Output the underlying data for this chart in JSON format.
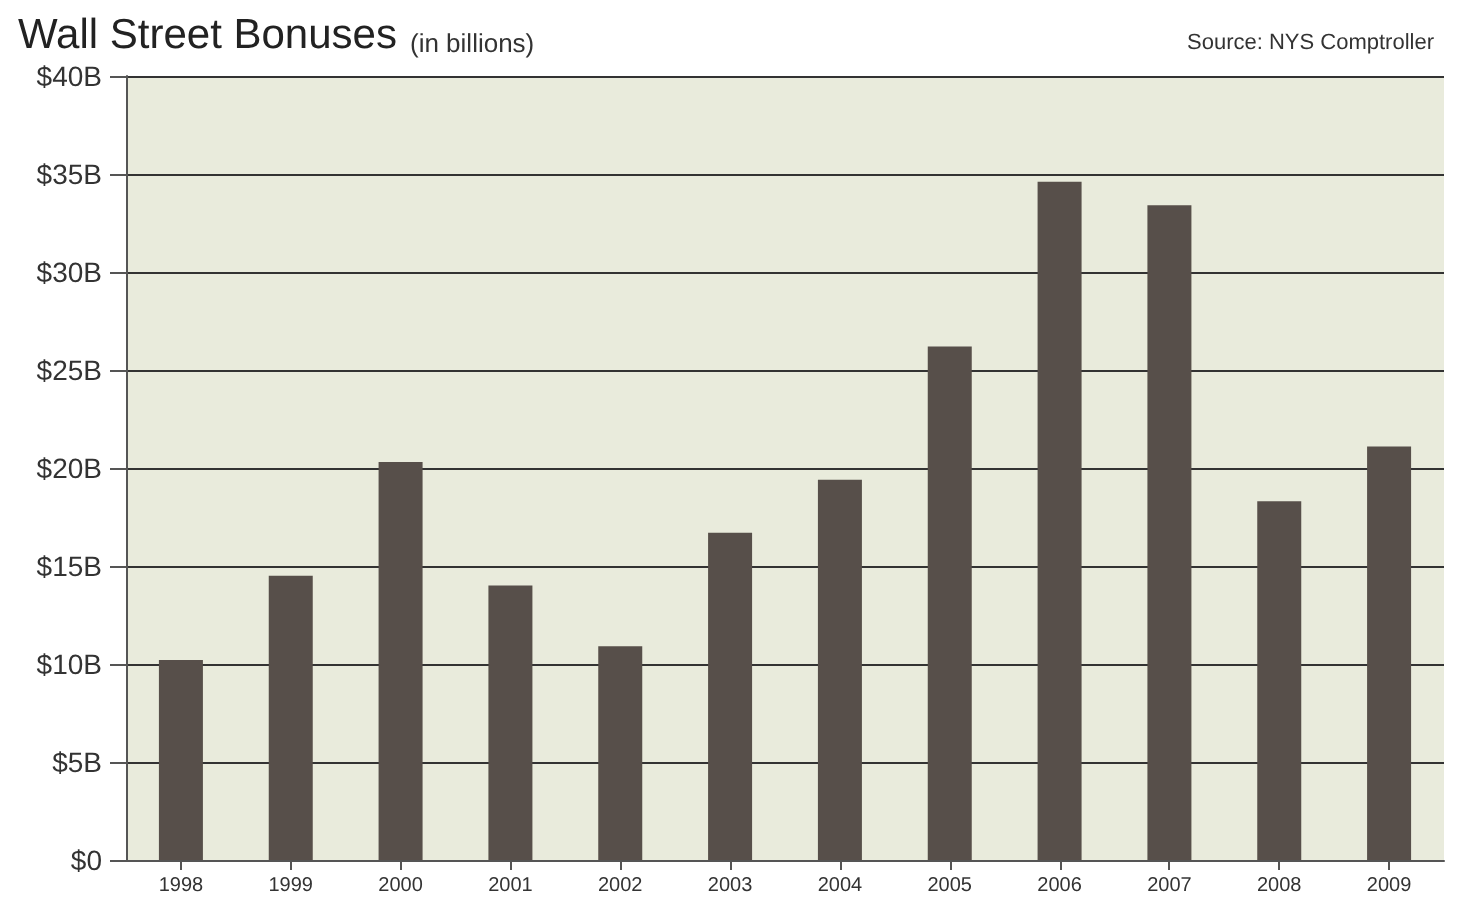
{
  "chart_data": {
    "type": "bar",
    "title": "Wall Street Bonuses",
    "subtitle": "(in billions)",
    "annotations": [
      "Source: NYS Comptroller"
    ],
    "categories": [
      "1998",
      "1999",
      "2000",
      "2001",
      "2002",
      "2003",
      "2004",
      "2005",
      "2006",
      "2007",
      "2008",
      "2009"
    ],
    "values": [
      10.2,
      14.5,
      20.3,
      14.0,
      10.9,
      16.7,
      19.4,
      26.2,
      34.6,
      33.4,
      18.3,
      21.1
    ],
    "color": "#574f4a",
    "ylim": [
      0,
      40
    ],
    "yticks": [
      {
        "value": 0,
        "label": "$0"
      },
      {
        "value": 5,
        "label": "$5B"
      },
      {
        "value": 10,
        "label": "$10B"
      },
      {
        "value": 15,
        "label": "$15B"
      },
      {
        "value": 20,
        "label": "$20B"
      },
      {
        "value": 25,
        "label": "$25B"
      },
      {
        "value": 30,
        "label": "$30B"
      },
      {
        "value": 35,
        "label": "$35B"
      },
      {
        "value": 40,
        "label": "$40B"
      }
    ],
    "grid": "y"
  }
}
